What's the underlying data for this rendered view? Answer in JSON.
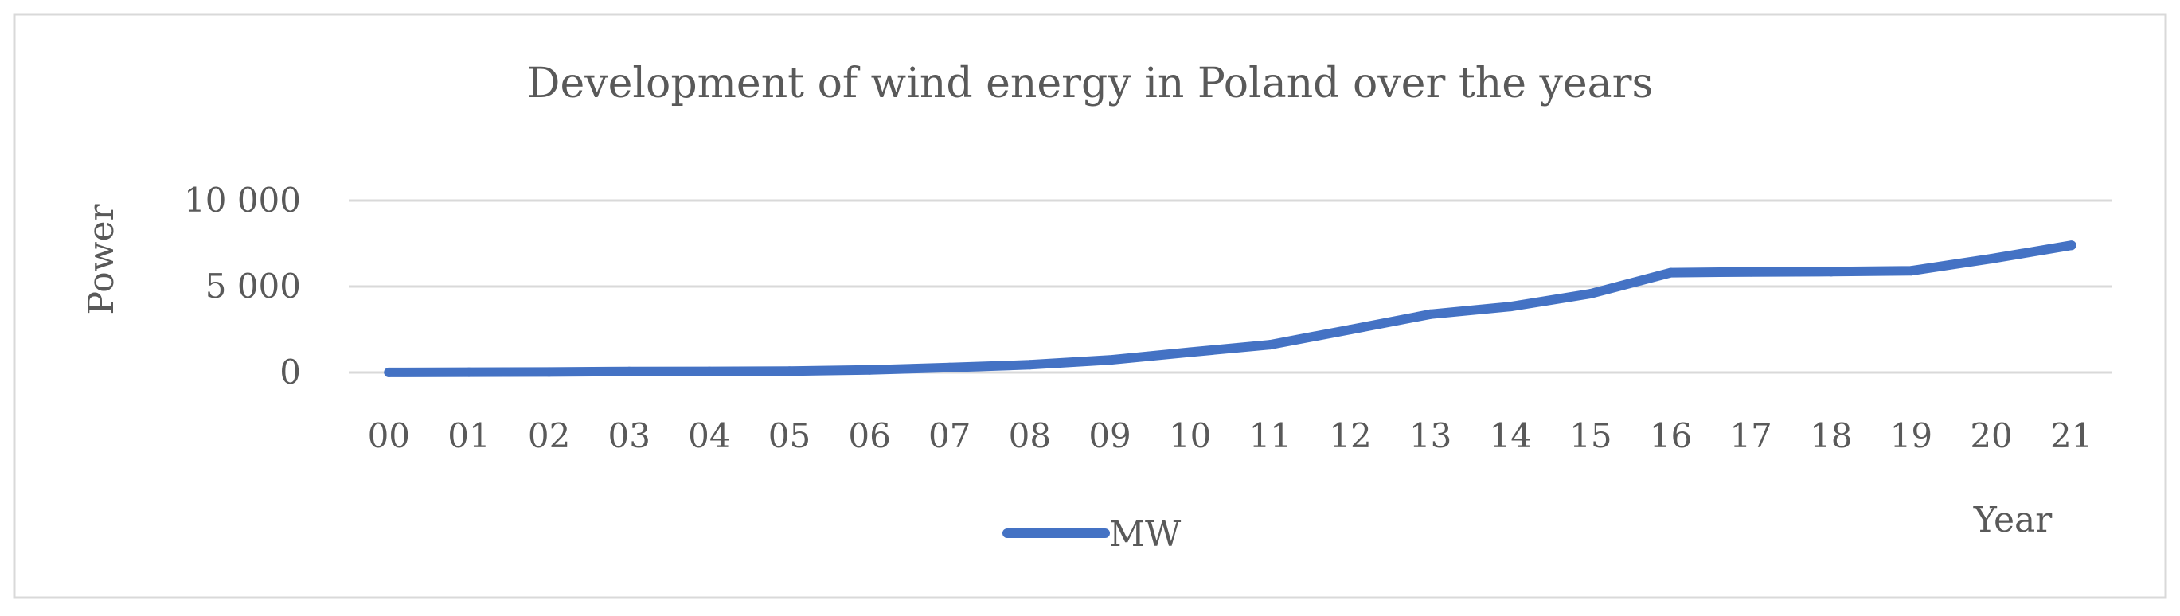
{
  "chart_data": {
    "type": "line",
    "title": "Development of wind energy in Poland over the years",
    "xlabel": "Year",
    "ylabel": "Power",
    "categories": [
      "00",
      "01",
      "02",
      "03",
      "04",
      "05",
      "06",
      "07",
      "08",
      "09",
      "10",
      "11",
      "12",
      "13",
      "14",
      "15",
      "16",
      "17",
      "18",
      "19",
      "20",
      "21"
    ],
    "series": [
      {
        "name": "MW",
        "color": "#4472C4",
        "values": [
          4,
          19,
          27,
          58,
          63,
          83,
          153,
          288,
          451,
          725,
          1180,
          1616,
          2497,
          3390,
          3834,
          4582,
          5807,
          5848,
          5864,
          5917,
          6614,
          7398
        ]
      }
    ],
    "ylim": [
      0,
      10000
    ],
    "yticks": [
      0,
      5000,
      10000
    ],
    "ytick_labels": [
      "0",
      "5 000",
      "10 000"
    ],
    "grid": true,
    "legend": "bottom-center"
  }
}
